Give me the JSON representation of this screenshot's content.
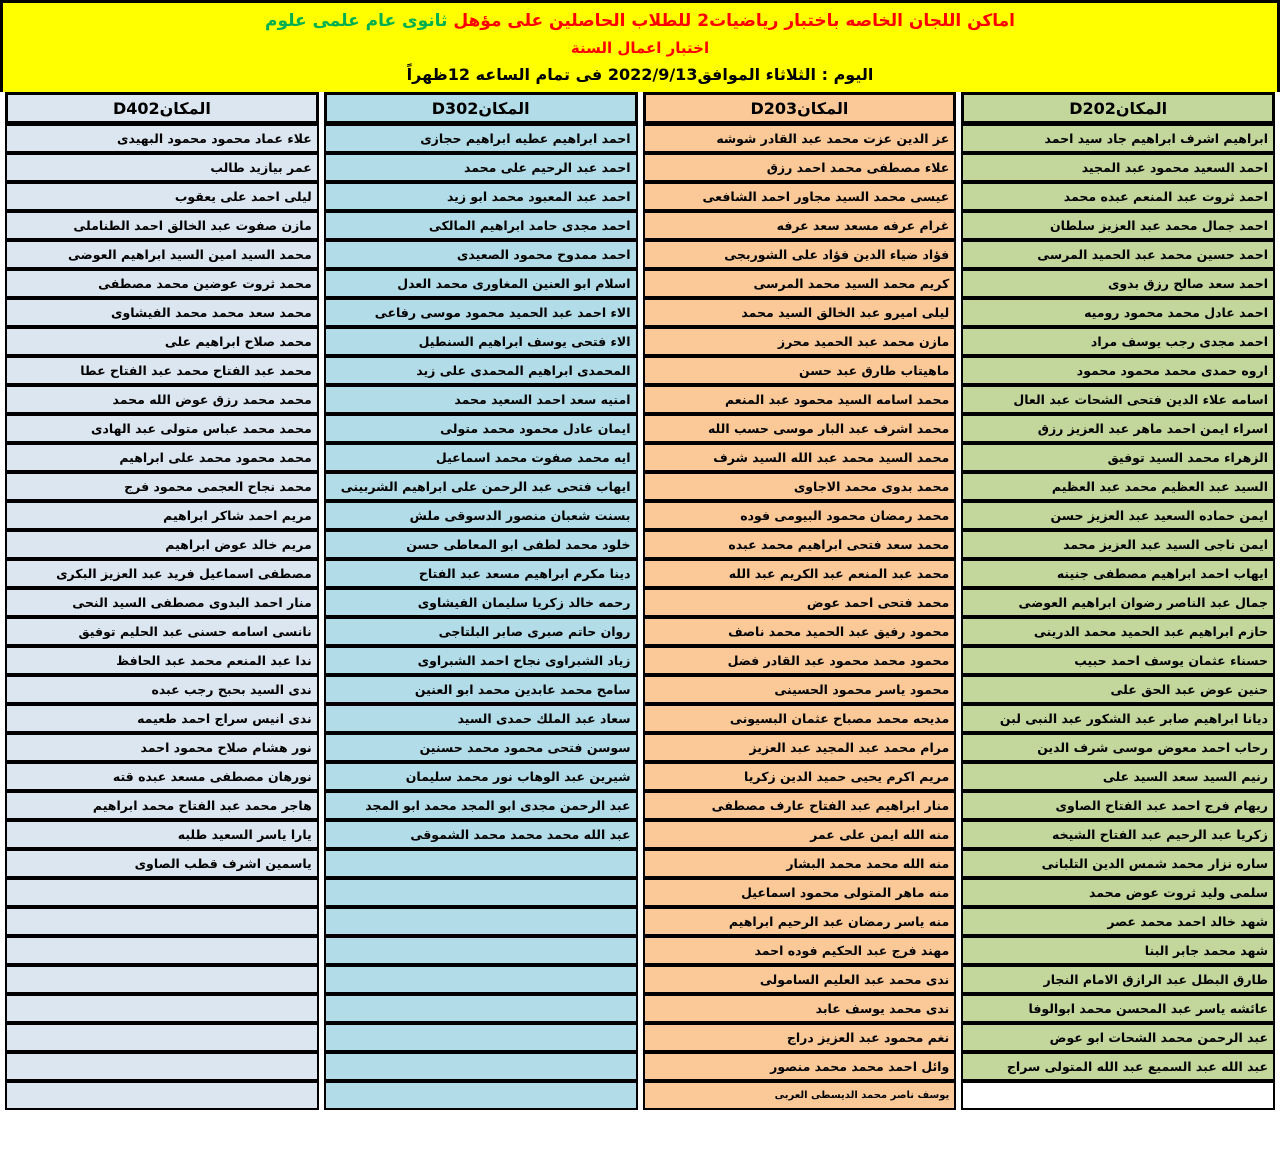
{
  "banner": {
    "line1_red": "اماكن اللجان الخاصه باختبار رياضيات2 للطلاب الحاصلين على مؤهل ",
    "line1_green": " ثانوى عام علمى علوم",
    "line2": "اختبار اعمال السنة",
    "line3": "اليوم : الثلاثاء الموافق2022/9/13 فى تمام الساعه 12ظهراً"
  },
  "colors": {
    "banner_bg": "#ffff00",
    "banner_text_red": "#ff0000",
    "banner_text_green": "#00b050",
    "border": "#000000"
  },
  "total_rows": 34,
  "columns": [
    {
      "id": "D202",
      "label": "المكانD202",
      "color": "#c3d69b",
      "empty_color": "#ffffff",
      "names": [
        "ابراهيم اشرف ابراهيم جاد سيد احمد",
        "احمد السعيد محمود عبد المجيد",
        "احمد ثروت عبد المنعم عبده محمد",
        "احمد جمال محمد عبد العزيز سلطان",
        "احمد حسين محمد عبد الحميد المرسى",
        "احمد سعد صالح رزق بدوى",
        "احمد عادل محمد محمود روميه",
        "احمد مجدى رجب يوسف مراد",
        "اروه حمدى محمد محمود محمود",
        "اسامه علاء الدين فتحى الشحات عبد العال",
        "اسراء ايمن احمد ماهر عبد العزيز رزق",
        "الزهراء محمد السيد توفيق",
        "السيد عبد العظيم محمد عبد العظيم",
        "ايمن حماده السعيد عبد العزيز حسن",
        "ايمن ناجى السيد عبد العزيز محمد",
        "ايهاب احمد ابراهيم مصطفى جنينه",
        "جمال عبد الناصر رضوان ابراهيم العوضى",
        "حازم ابراهيم عبد الحميد محمد الدرينى",
        "حسناء عثمان يوسف احمد حبيب",
        "حنين عوض عبد الحق على",
        "ديانا ابراهيم صابر عبد الشكور عبد النبى لبن",
        "رحاب احمد معوض موسى شرف الدين",
        "رنيم السيد سعد السيد على",
        "ريهام فرج احمد عبد الفتاح الصاوى",
        "زكريا عبد الرحيم عبد الفتاح الشيخه",
        "ساره نزار محمد شمس الدين التلبانى",
        "سلمى وليد ثروت عوض محمد",
        "شهد خالد احمد محمد عصر",
        "شهد محمد جابر البنا",
        "طارق البطل عبد الرازق الامام النجار",
        "عائشه ياسر عبد المحسن محمد ابوالوفا",
        "عبد الرحمن محمد الشحات ابو عوض",
        "عبد الله عبد السميع عبد الله المتولى سراج"
      ]
    },
    {
      "id": "D203",
      "label": "المكانD203",
      "color": "#fbc998",
      "last_name_small": true,
      "names": [
        "عز الدين عزت محمد عبد القادر شوشه",
        "علاء مصطفى محمد احمد رزق",
        "عيسى محمد السيد مجاور احمد الشافعى",
        "غرام عرفه مسعد سعد عرفه",
        "فؤاد ضياء الدين فؤاد على الشوربجى",
        "كريم محمد السيد محمد المرسى",
        "ليلى اميرو عبد الخالق السيد محمد",
        "مازن محمد عبد الحميد محرز",
        "ماهيتاب طارق عبد حسن",
        "محمد اسامه السيد محمود عبد المنعم",
        "محمد اشرف عبد البار موسى حسب الله",
        "محمد السيد محمد عبد الله السيد شرف",
        "محمد بدوى محمد الاجاوى",
        "محمد رمضان محمود البيومى فوده",
        "محمد سعد فتحى ابراهيم محمد عبده",
        "محمد عبد المنعم عبد الكريم عبد الله",
        "محمد فتحى احمد عوض",
        "محمود رفيق عبد الحميد محمد ناصف",
        "محمود محمد محمود عبد القادر فضل",
        "محمود ياسر محمود الحسينى",
        "مديحه محمد مصباح عثمان البسيونى",
        "مرام محمد عبد المجيد عبد العزيز",
        "مريم اكرم يحيى حميد الدين زكريا",
        "منار ابراهيم عبد الفتاح عارف مصطفى",
        "منه الله ايمن على عمر",
        "منه الله محمد محمد البشار",
        "منه ماهر المتولى محمود اسماعيل",
        "منه ياسر رمضان عبد الرحيم ابراهيم",
        "مهند فرج عبد الحكيم فوده احمد",
        "ندى محمد عبد العليم السامولى",
        "ندى محمد يوسف عابد",
        "نغم محمود عبد العزيز دراج",
        "وائل احمد محمد محمد منصور",
        "يوسف ناصر محمد الديسطى العربى"
      ]
    },
    {
      "id": "D302",
      "label": "المكانD302",
      "color": "#b2dce7",
      "names": [
        "احمد ابراهيم عطيه ابراهيم حجازى",
        "احمد عبد الرحيم على محمد",
        "احمد عبد المعبود محمد ابو زيد",
        "احمد مجدى حامد ابراهيم المالكى",
        "احمد ممدوح محمود الصعيدى",
        "اسلام ابو العنين المغاورى محمد العدل",
        "الاء احمد عبد الحميد محمود موسى رفاعى",
        "الاء فتحى يوسف ابراهيم السنطيل",
        "المحمدى ابراهيم المحمدى على زيد",
        "امنيه سعد احمد السعيد محمد",
        "ايمان عادل محمود محمد متولى",
        "ايه محمد صفوت محمد اسماعيل",
        "ايهاب فتحى عبد الرحمن على ابراهيم الشربينى",
        "بسنت شعبان منصور الدسوقى ملش",
        "خلود محمد لطفى ابو المعاطى حسن",
        "دينا مكرم ابراهيم مسعد عبد الفتاح",
        "رحمه خالد زكريا سليمان الفيشاوى",
        "روان حاتم صبرى صابر البلتاجى",
        "زياد الشبراوى نجاح احمد الشبراوى",
        "سامح محمد عابدين محمد ابو العنين",
        "سعاد عبد الملك حمدى السيد",
        "سوسن فتحى محمود محمد حسنين",
        "شيرين عبد الوهاب نور محمد سليمان",
        "عبد الرحمن مجدى ابو المجد محمد ابو المجد",
        "عبد الله محمد محمد محمد الشموقى"
      ]
    },
    {
      "id": "D402",
      "label": "المكانD402",
      "color": "#dce6f1",
      "names": [
        "علاء عماد محمود محمود البهيدى",
        "عمر بيازيد طالب",
        "ليلى احمد على يعقوب",
        "مازن صفوت عبد الخالق احمد الطناملى",
        "محمد السيد امين السيد ابراهيم العوضى",
        "محمد ثروت عوضين محمد مصطفى",
        "محمد سعد محمد محمد الفيشاوى",
        "محمد صلاح ابراهيم على",
        "محمد عبد الفتاح محمد عبد الفتاح عطا",
        "محمد محمد رزق عوض الله محمد",
        "محمد محمد عباس متولى عبد الهادى",
        "محمد محمود محمد على ابراهيم",
        "محمد نجاح العجمى محمود فرج",
        "مريم احمد شاكر ابراهيم",
        "مريم خالد عوض ابراهيم",
        "مصطفى اسماعيل فريد عبد العزيز البكرى",
        "منار احمد البدوى مصطفى السيد النحى",
        "نانسى اسامه حسنى عبد الحليم توفيق",
        "ندا عبد المنعم محمد عبد الحافظ",
        "ندى السيد بحبح رجب عبده",
        "ندى انيس سراج احمد طعيمه",
        "نور هشام صلاح محمود احمد",
        "نورهان مصطفى مسعد عبده قته",
        "هاجر محمد عبد الفتاح محمد ابراهيم",
        "يارا ياسر السعيد طلبه",
        "ياسمين اشرف قطب الصاوى"
      ]
    }
  ]
}
